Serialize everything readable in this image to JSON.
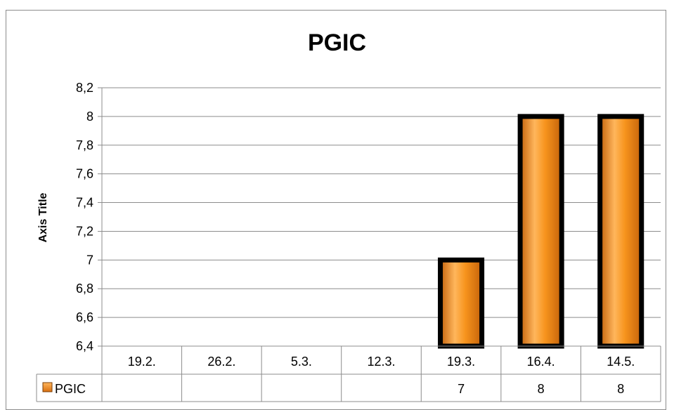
{
  "chart_data": {
    "type": "bar",
    "title": "PGIC",
    "ylabel": "Axis Title",
    "xlabel": "",
    "categories": [
      "19.2.",
      "26.2.",
      "5.3.",
      "12.3.",
      "19.3.",
      "16.4.",
      "14.5."
    ],
    "series": [
      {
        "name": "PGIC",
        "values": [
          null,
          null,
          null,
          null,
          7,
          8,
          8
        ]
      }
    ],
    "ylim": [
      6.4,
      8.2
    ],
    "ystep": 0.2,
    "y_ticks": [
      "6,4",
      "6,6",
      "6,8",
      "7",
      "7,2",
      "7,4",
      "7,6",
      "7,8",
      "8",
      "8,2"
    ],
    "grid": true,
    "legend": "data-table",
    "table_values": [
      "",
      "",
      "",
      "",
      "7",
      "8",
      "8"
    ],
    "colors": {
      "bar_fill": "#f7941d",
      "bar_light": "#ffb65c",
      "bar_dark": "#c4620a",
      "bar_border": "#000000",
      "grid": "#8c8c8c"
    }
  }
}
